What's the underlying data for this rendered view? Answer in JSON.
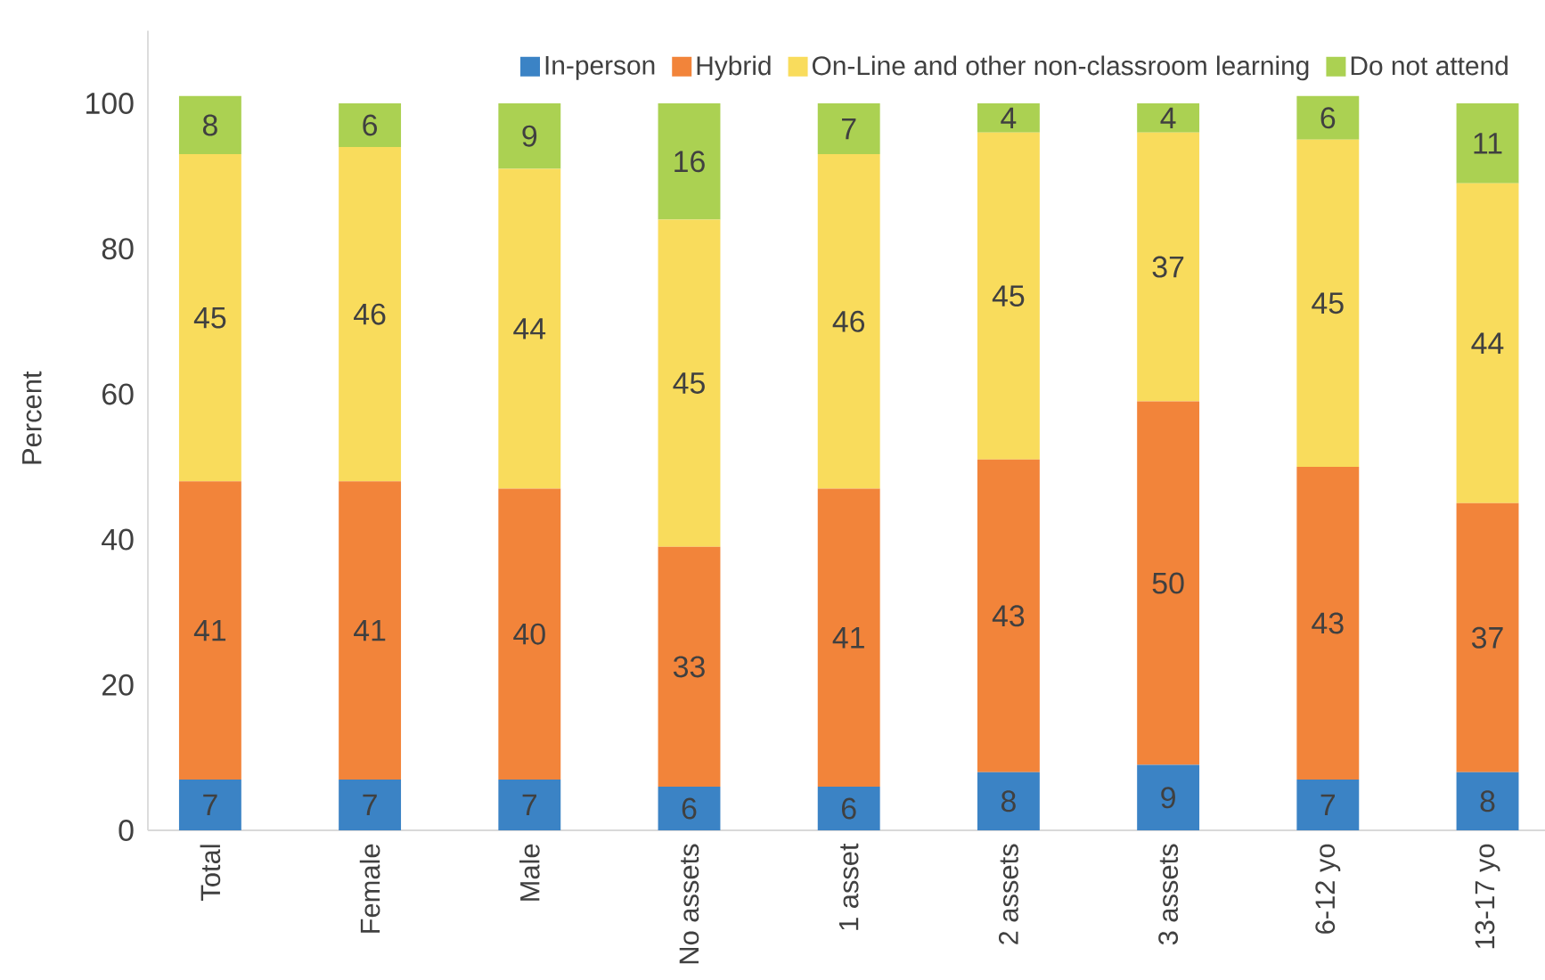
{
  "chart_data": {
    "type": "bar",
    "stacked": true,
    "ylabel": "Percent",
    "categories": [
      "Total",
      "Female",
      "Male",
      "No assets",
      "1 asset",
      "2 assets",
      "3 assets",
      "6-12 yo",
      "13-17 yo"
    ],
    "series": [
      {
        "name": "In-person",
        "color": "#3b83c5",
        "values": [
          7,
          7,
          7,
          6,
          6,
          8,
          9,
          7,
          8
        ]
      },
      {
        "name": "Hybrid",
        "color": "#f2843a",
        "values": [
          41,
          41,
          40,
          33,
          41,
          43,
          50,
          43,
          37
        ]
      },
      {
        "name": "On-Line and other non-classroom learning",
        "color": "#f9dc5c",
        "values": [
          45,
          46,
          44,
          45,
          46,
          45,
          37,
          45,
          44
        ]
      },
      {
        "name": "Do not attend",
        "color": "#abd152",
        "values": [
          8,
          6,
          9,
          16,
          7,
          4,
          4,
          6,
          11
        ]
      }
    ],
    "ylim": [
      0,
      110
    ],
    "yticks": [
      0,
      20,
      40,
      60,
      80,
      100
    ],
    "data_labels": true,
    "legend": "top right"
  }
}
